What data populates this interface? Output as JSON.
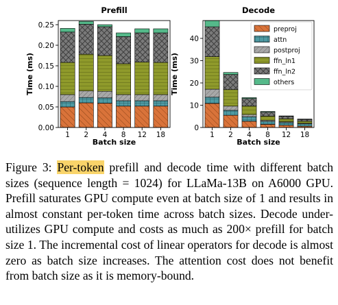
{
  "colors": {
    "preproj": "#d9733a",
    "attn": "#4e9aa3",
    "postproj": "#a8a8a8",
    "ffn_ln1": "#8f9a2b",
    "ffn_ln2": "#7a7a7a",
    "others": "#55b98a"
  },
  "chart_data": [
    {
      "type": "bar",
      "stacked": true,
      "title": "Prefill",
      "xlabel": "Batch size",
      "ylabel": "Time (ms)",
      "categories": [
        "1",
        "2",
        "4",
        "8",
        "12",
        "18"
      ],
      "ylim": [
        0,
        0.26
      ],
      "yticks": [
        0.0,
        0.05,
        0.1,
        0.15,
        0.2,
        0.25
      ],
      "ytick_labels": [
        "0.00",
        "0.05",
        "0.10",
        "0.15",
        "0.20",
        "0.25"
      ],
      "series": [
        {
          "name": "preproj",
          "values": [
            0.05,
            0.06,
            0.059,
            0.052,
            0.052,
            0.052
          ]
        },
        {
          "name": "attn",
          "values": [
            0.013,
            0.013,
            0.013,
            0.013,
            0.013,
            0.013
          ]
        },
        {
          "name": "postproj",
          "values": [
            0.017,
            0.016,
            0.016,
            0.015,
            0.015,
            0.015
          ]
        },
        {
          "name": "ffn_ln1",
          "values": [
            0.078,
            0.089,
            0.087,
            0.075,
            0.079,
            0.078
          ]
        },
        {
          "name": "ffn_ln2",
          "values": [
            0.074,
            0.073,
            0.07,
            0.066,
            0.071,
            0.072
          ]
        },
        {
          "name": "others",
          "values": [
            0.009,
            0.007,
            0.005,
            0.009,
            0.01,
            0.01
          ]
        }
      ]
    },
    {
      "type": "bar",
      "stacked": true,
      "title": "Decode",
      "xlabel": "Batch size",
      "ylabel": "Time (ms)",
      "categories": [
        "1",
        "2",
        "4",
        "8",
        "12",
        "18"
      ],
      "ylim": [
        0,
        48
      ],
      "yticks": [
        0,
        10,
        20,
        30,
        40
      ],
      "ytick_labels": [
        "0",
        "10",
        "20",
        "30",
        "40"
      ],
      "legend_position": "top-right",
      "series": [
        {
          "name": "preproj",
          "values": [
            10.8,
            5.5,
            2.8,
            1.4,
            1.0,
            0.6
          ]
        },
        {
          "name": "attn",
          "values": [
            2.8,
            2.2,
            2.0,
            1.3,
            1.2,
            1.0
          ]
        },
        {
          "name": "postproj",
          "values": [
            3.6,
            1.9,
            1.0,
            0.5,
            0.4,
            0.3
          ]
        },
        {
          "name": "ffn_ln1",
          "values": [
            14.6,
            7.4,
            3.8,
            1.9,
            1.3,
            0.9
          ]
        },
        {
          "name": "ffn_ln2",
          "values": [
            13.4,
            6.8,
            3.4,
            1.8,
            1.1,
            0.8
          ]
        },
        {
          "name": "others",
          "values": [
            2.8,
            0.9,
            0.4,
            0.3,
            0.2,
            0.2
          ]
        }
      ]
    }
  ],
  "caption": {
    "prefix": "Figure 3: ",
    "highlight": "Per-token",
    "text": " prefill and decode time with different batch sizes (sequence length = 1024) for LLaMa-13B on A6000 GPU. Prefill saturates GPU compute even at batch size of 1 and results in almost constant per-token time across batch sizes. Decode under-utilizes GPU compute and costs as much as 200× prefill for batch size 1. The incremental cost of linear operators for decode is almost zero as batch size increases. The attention cost does not benefit from batch size as it is memory-bound."
  }
}
